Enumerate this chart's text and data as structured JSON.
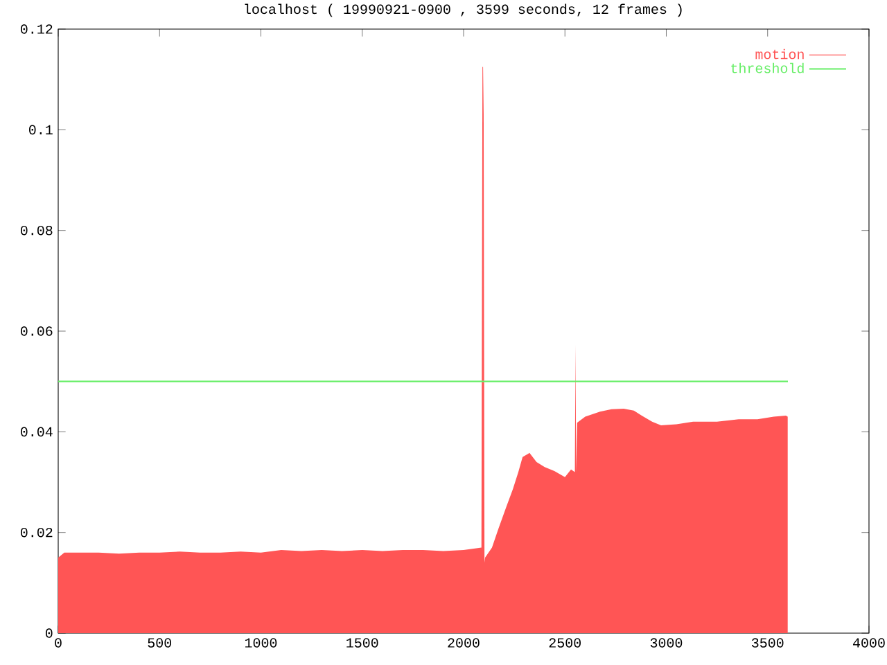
{
  "chart_data": {
    "type": "area",
    "title": "localhost ( 19990921-0900 , 3599 seconds, 12 frames )",
    "xlim": [
      0,
      4000
    ],
    "xticks": [
      0,
      500,
      1000,
      1500,
      2000,
      2500,
      3000,
      3500,
      4000
    ],
    "ylim": [
      0,
      0.12
    ],
    "yticks": [
      0,
      0.02,
      0.04,
      0.06,
      0.08,
      0.1,
      0.12
    ],
    "legend": "top right",
    "grid": false,
    "series": [
      {
        "name": "motion",
        "color": "#ff5555",
        "x": [
          0,
          30,
          100,
          200,
          300,
          400,
          500,
          600,
          700,
          800,
          900,
          1000,
          1100,
          1200,
          1300,
          1400,
          1500,
          1600,
          1700,
          1800,
          1900,
          2000,
          2088,
          2093,
          2096,
          2099,
          2103,
          2106,
          2140,
          2174,
          2210,
          2243,
          2270,
          2291,
          2325,
          2360,
          2400,
          2448,
          2500,
          2530,
          2549,
          2552,
          2555,
          2560,
          2600,
          2673,
          2730,
          2790,
          2840,
          2879,
          2930,
          2974,
          3050,
          3132,
          3250,
          3357,
          3450,
          3530,
          3590,
          3599
        ],
        "values": [
          0.015,
          0.016,
          0.016,
          0.016,
          0.0158,
          0.016,
          0.016,
          0.0162,
          0.016,
          0.016,
          0.0162,
          0.016,
          0.0165,
          0.0163,
          0.0165,
          0.0163,
          0.0165,
          0.0163,
          0.0165,
          0.0165,
          0.0163,
          0.0165,
          0.017,
          0.1125,
          0.1125,
          0.103,
          0.014,
          0.015,
          0.017,
          0.021,
          0.025,
          0.0286,
          0.032,
          0.035,
          0.0358,
          0.034,
          0.033,
          0.0322,
          0.031,
          0.0325,
          0.032,
          0.0573,
          0.032,
          0.0418,
          0.043,
          0.044,
          0.0445,
          0.0446,
          0.0442,
          0.0432,
          0.042,
          0.0413,
          0.0415,
          0.042,
          0.042,
          0.0425,
          0.0425,
          0.043,
          0.0432,
          0.043
        ]
      },
      {
        "name": "threshold",
        "color": "#66ee66",
        "type": "line",
        "x": [
          0,
          3600
        ],
        "values": [
          0.05,
          0.05
        ]
      }
    ]
  }
}
